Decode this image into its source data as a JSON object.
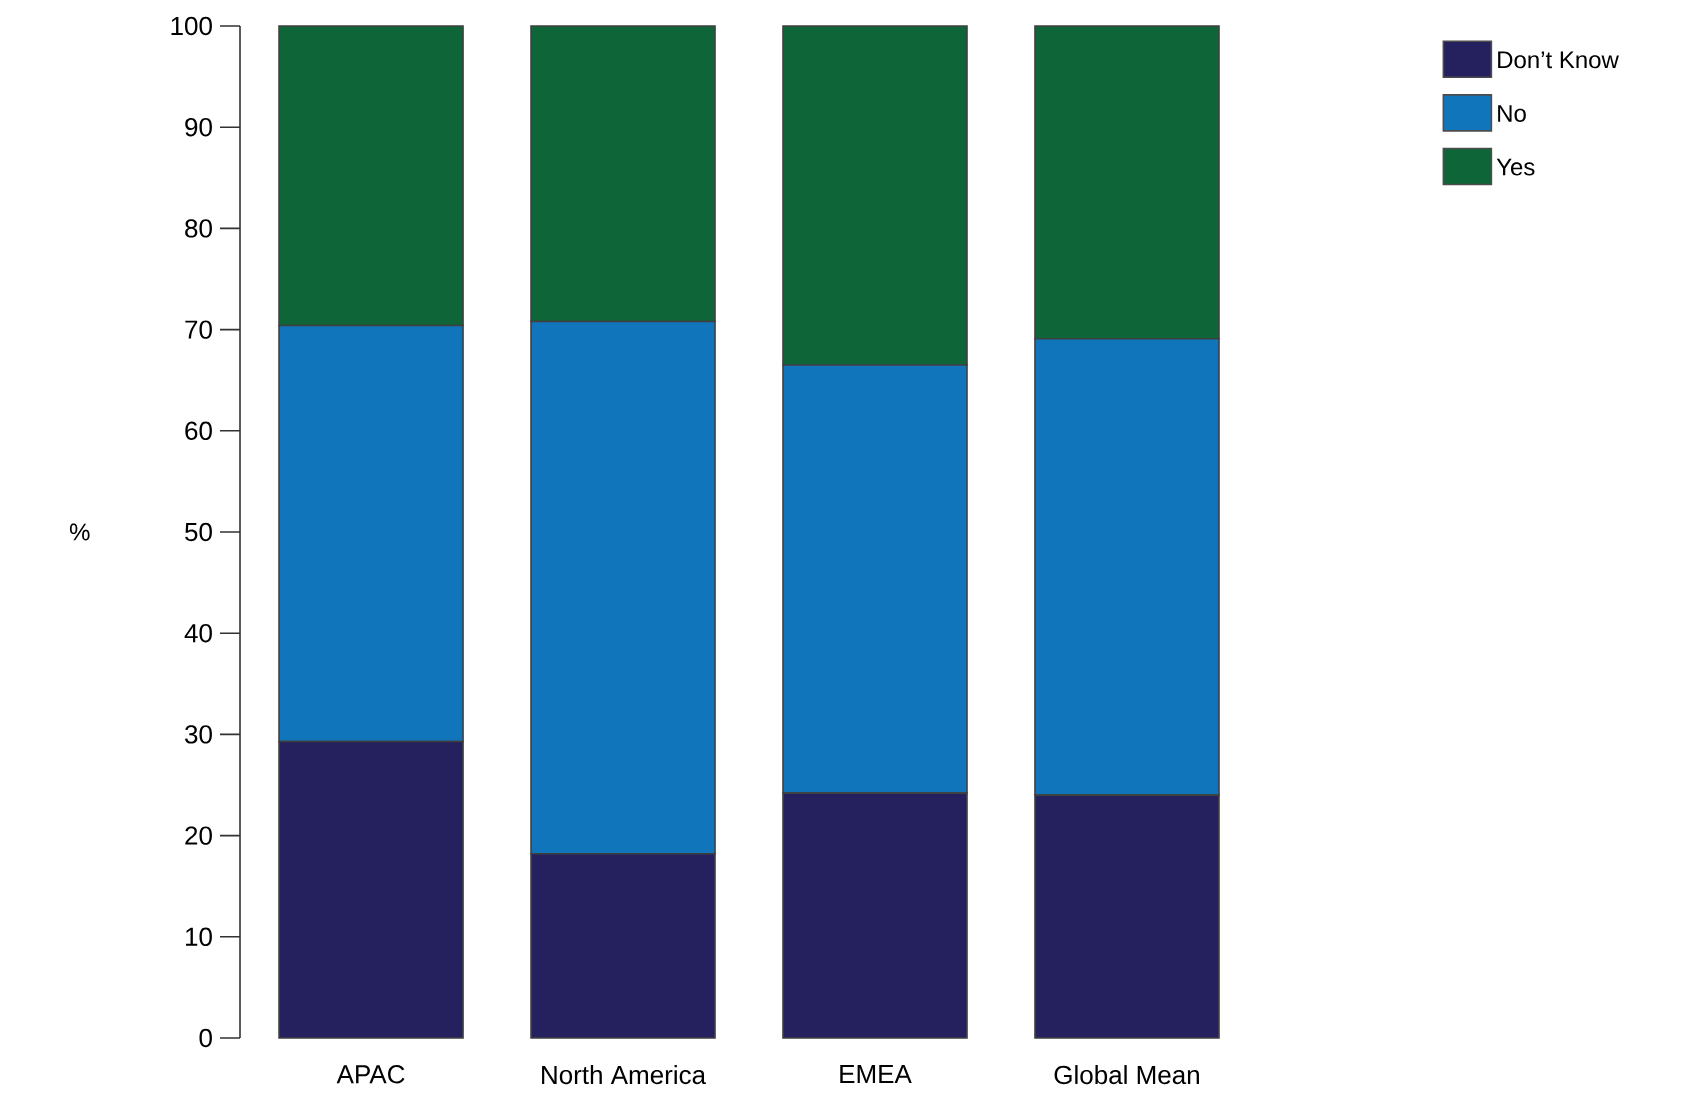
{
  "chart_data": {
    "type": "bar",
    "stacked": true,
    "ylabel": "%",
    "categories": [
      "APAC",
      "North America",
      "EMEA",
      "Global Mean"
    ],
    "series": [
      {
        "name": "Don’t Know",
        "color": "#25215f",
        "values": [
          29.3,
          18.2,
          24.2,
          24.0
        ]
      },
      {
        "name": "No",
        "color": "#1175bc",
        "values": [
          41.1,
          52.6,
          42.3,
          45.1
        ]
      },
      {
        "name": "Yes",
        "color": "#0e6638",
        "values": [
          29.6,
          29.2,
          33.5,
          30.9
        ]
      }
    ],
    "ylim": [
      0,
      100
    ],
    "yticks": [
      0,
      10,
      20,
      30,
      40,
      50,
      60,
      70,
      80,
      90,
      100
    ],
    "grid": false,
    "legend": "top right"
  }
}
